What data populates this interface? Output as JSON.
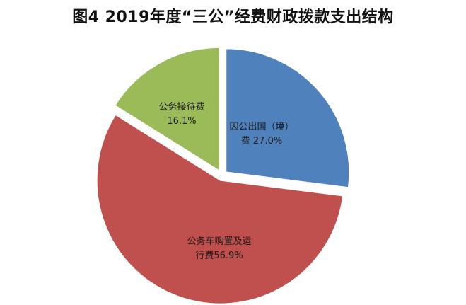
{
  "chart_data": {
    "type": "pie",
    "title": "图4  2019年度“三公”经费财政拨款支出结构",
    "slices": [
      {
        "label_lines": [
          "因公出国（境）",
          "费 27.0%"
        ],
        "value": 27.0,
        "color": "#4f81bd"
      },
      {
        "label_lines": [
          "公务车购置及运",
          "行费56.9%"
        ],
        "value": 56.9,
        "color": "#c0504d"
      },
      {
        "label_lines": [
          "公务接待费",
          "16.1%"
        ],
        "value": 16.1,
        "color": "#9bbb59"
      }
    ],
    "start_angle_deg": 0,
    "direction": "clockwise",
    "exploded": true,
    "legend": "none"
  }
}
